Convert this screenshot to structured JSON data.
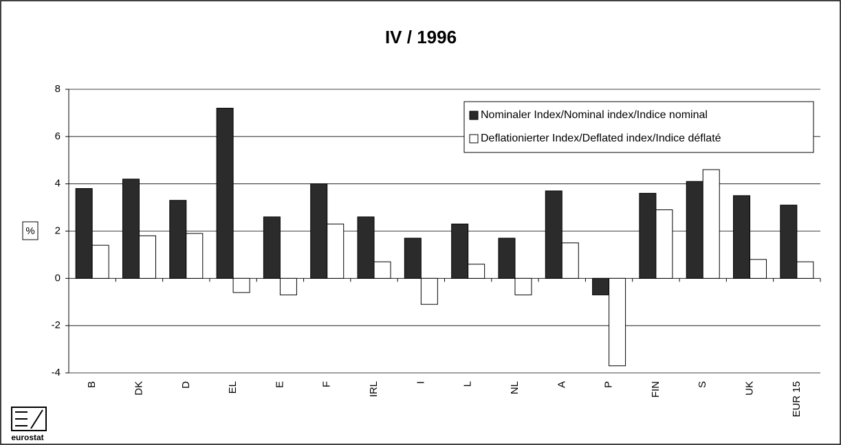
{
  "chart_data": {
    "type": "bar",
    "title": "IV / 1996",
    "y_label": "%",
    "logo": "eurostat",
    "categories": [
      "B",
      "DK",
      "D",
      "EL",
      "E",
      "F",
      "IRL",
      "I",
      "L",
      "NL",
      "A",
      "P",
      "FIN",
      "S",
      "UK",
      "EUR 15"
    ],
    "series": [
      {
        "name": "Nominaler Index/Nominal index/Indice nominal",
        "color": "#2b2b2b",
        "values": [
          3.8,
          4.2,
          3.3,
          7.2,
          2.6,
          4.0,
          2.6,
          1.7,
          2.3,
          1.7,
          3.7,
          -0.7,
          3.6,
          4.1,
          3.5,
          3.1
        ]
      },
      {
        "name": "Deflationierter Index/Deflated index/Indice déflaté",
        "color": "#ffffff",
        "values": [
          1.4,
          1.8,
          1.9,
          -0.6,
          -0.7,
          2.3,
          0.7,
          -1.1,
          0.6,
          -0.7,
          1.5,
          -3.7,
          2.9,
          4.6,
          0.8,
          0.7
        ]
      }
    ],
    "ylim": [
      -4,
      8
    ],
    "yticks": [
      -4,
      -2,
      0,
      2,
      4,
      6,
      8
    ],
    "grid": true,
    "legend": "top-right"
  }
}
